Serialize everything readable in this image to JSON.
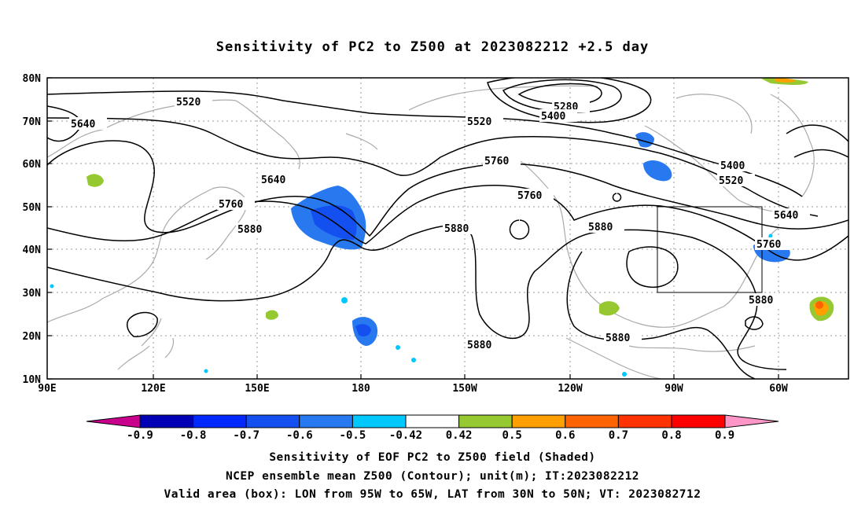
{
  "title": "Sensitivity of PC2 to Z500 at 2023082212 +2.5 day",
  "lat_labels": [
    "80N",
    "70N",
    "60N",
    "50N",
    "40N",
    "30N",
    "20N",
    "10N"
  ],
  "lon_labels": [
    "90E",
    "120E",
    "150E",
    "180",
    "150W",
    "120W",
    "90W",
    "60W"
  ],
  "contour_labels": [
    "5520",
    "5640",
    "5760",
    "5880",
    "5280",
    "5400",
    "5520",
    "5640",
    "5760",
    "5760",
    "5880",
    "5880",
    "5880",
    "5400",
    "5520",
    "5640",
    "5760",
    "5880",
    "5880"
  ],
  "colorbar_labels": [
    "-0.9",
    "-0.8",
    "-0.7",
    "-0.6",
    "-0.5",
    "-0.42",
    "0.42",
    "0.5",
    "0.6",
    "0.7",
    "0.8",
    "0.9"
  ],
  "colorbar_colors": [
    "#0000b4",
    "#0028ff",
    "#1450f0",
    "#2878f0",
    "#00c8ff",
    "#ffffff",
    "#96c832",
    "#ffa000",
    "#ff6400",
    "#ff3200",
    "#ff0000"
  ],
  "colorbar_end_colors": {
    "low": "#c8008c",
    "high": "#ff96c8"
  },
  "captions": {
    "line1": "Sensitivity of EOF PC2 to Z500 field (Shaded)",
    "line2": "NCEP ensemble mean Z500 (Contour); unit(m); IT:2023082212",
    "line3": "Valid area (box): LON from 95W to 65W, LAT from 30N to 50N; VT: 2023082712"
  }
}
